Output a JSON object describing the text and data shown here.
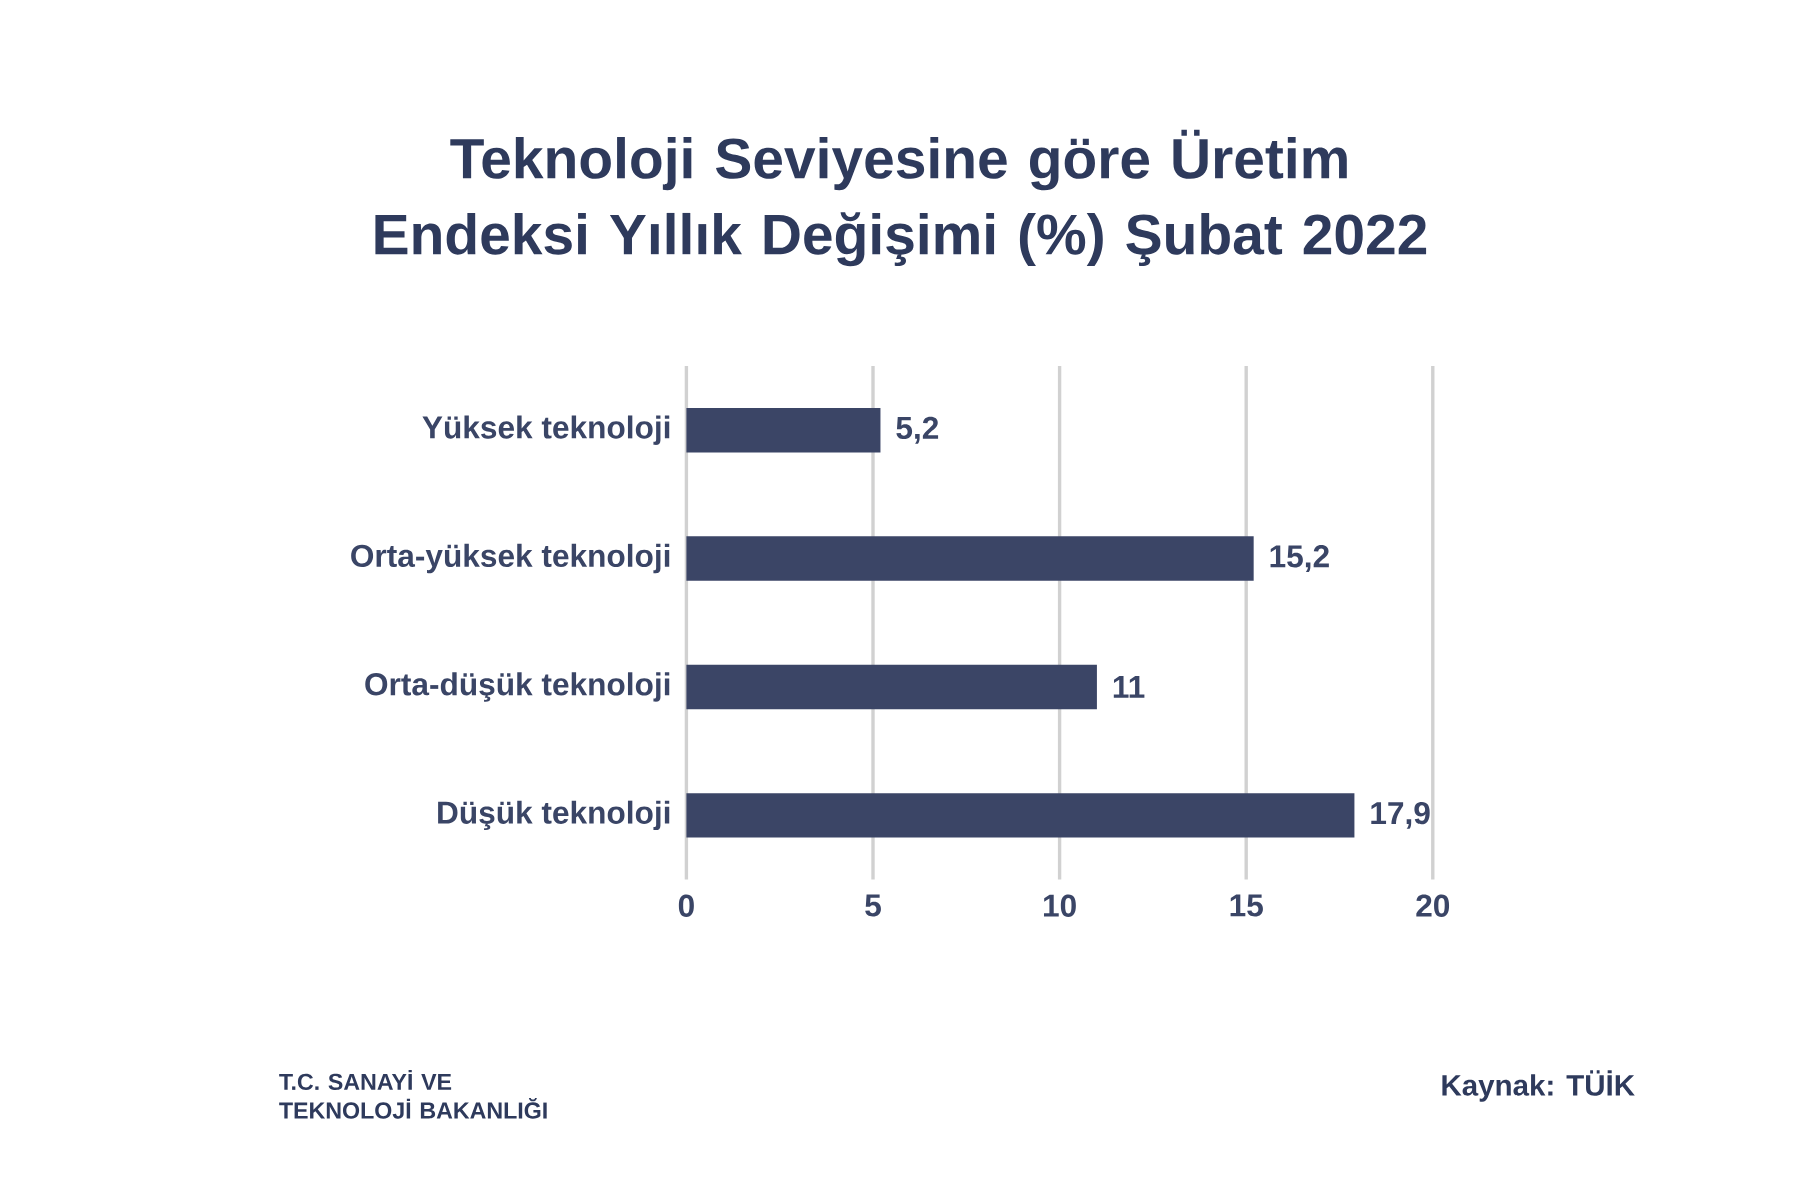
{
  "chart_data": {
    "type": "bar",
    "orientation": "horizontal",
    "title": "Teknoloji Seviyesine göre Üretim Endeksi Yıllık Değişimi (%) Şubat 2022",
    "categories": [
      "Yüksek teknoloji",
      "Orta-yüksek teknoloji",
      "Orta-düşük teknoloji",
      "Düşük teknoloji"
    ],
    "values": [
      5.2,
      15.2,
      11,
      17.9
    ],
    "value_labels": [
      "5,2",
      "15,2",
      "11",
      "17,9"
    ],
    "color": "#3b4566",
    "xlim": [
      0,
      20
    ],
    "xticks": [
      0,
      5,
      10,
      15,
      20
    ],
    "grid": "x",
    "annotations": [
      "T.C. SANAYİ VE TEKNOLOJİ BAKANLIĞI",
      "Kaynak: TÜİK"
    ]
  }
}
